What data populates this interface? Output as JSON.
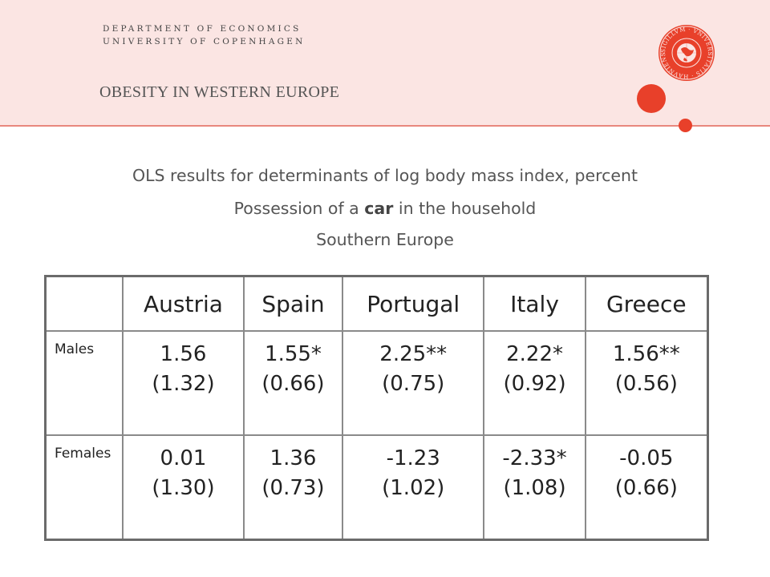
{
  "header": {
    "department": "DEPARTMENT OF ECONOMICS",
    "university": "UNIVERSITY OF COPENHAGEN",
    "title": "OBESITY IN WESTERN EUROPE",
    "accent_color": "#e8402a",
    "band_color": "#fbe5e3"
  },
  "subtitle": {
    "line1": "OLS results for determinants of log body mass index, percent",
    "line2_pre": "Possession of a ",
    "line2_bold": "car",
    "line2_post": " in the household",
    "line3": "Southern Europe"
  },
  "table": {
    "columns": [
      "Austria",
      "Spain",
      "Portugal",
      "Italy",
      "Greece"
    ],
    "rows": [
      {
        "label": "Males",
        "cells": [
          {
            "value": "1.56",
            "se": "(1.32)"
          },
          {
            "value": "1.55*",
            "se": "(0.66)"
          },
          {
            "value": "2.25**",
            "se": "(0.75)"
          },
          {
            "value": "2.22*",
            "se": "(0.92)"
          },
          {
            "value": "1.56**",
            "se": "(0.56)"
          }
        ]
      },
      {
        "label": "Females",
        "cells": [
          {
            "value": "0.01",
            "se": "(1.30)"
          },
          {
            "value": "1.36",
            "se": "(0.73)"
          },
          {
            "value": "-1.23",
            "se": "(1.02)"
          },
          {
            "value": "-2.33*",
            "se": "(1.08)"
          },
          {
            "value": "-0.05",
            "se": "(0.66)"
          }
        ]
      }
    ]
  },
  "seal": {
    "icon": "university-seal-icon",
    "ring_text": "SIGILLVM · VNIVERSITATIS · HAVNIENSIS · SOCIALIS · FACVLTAS"
  }
}
